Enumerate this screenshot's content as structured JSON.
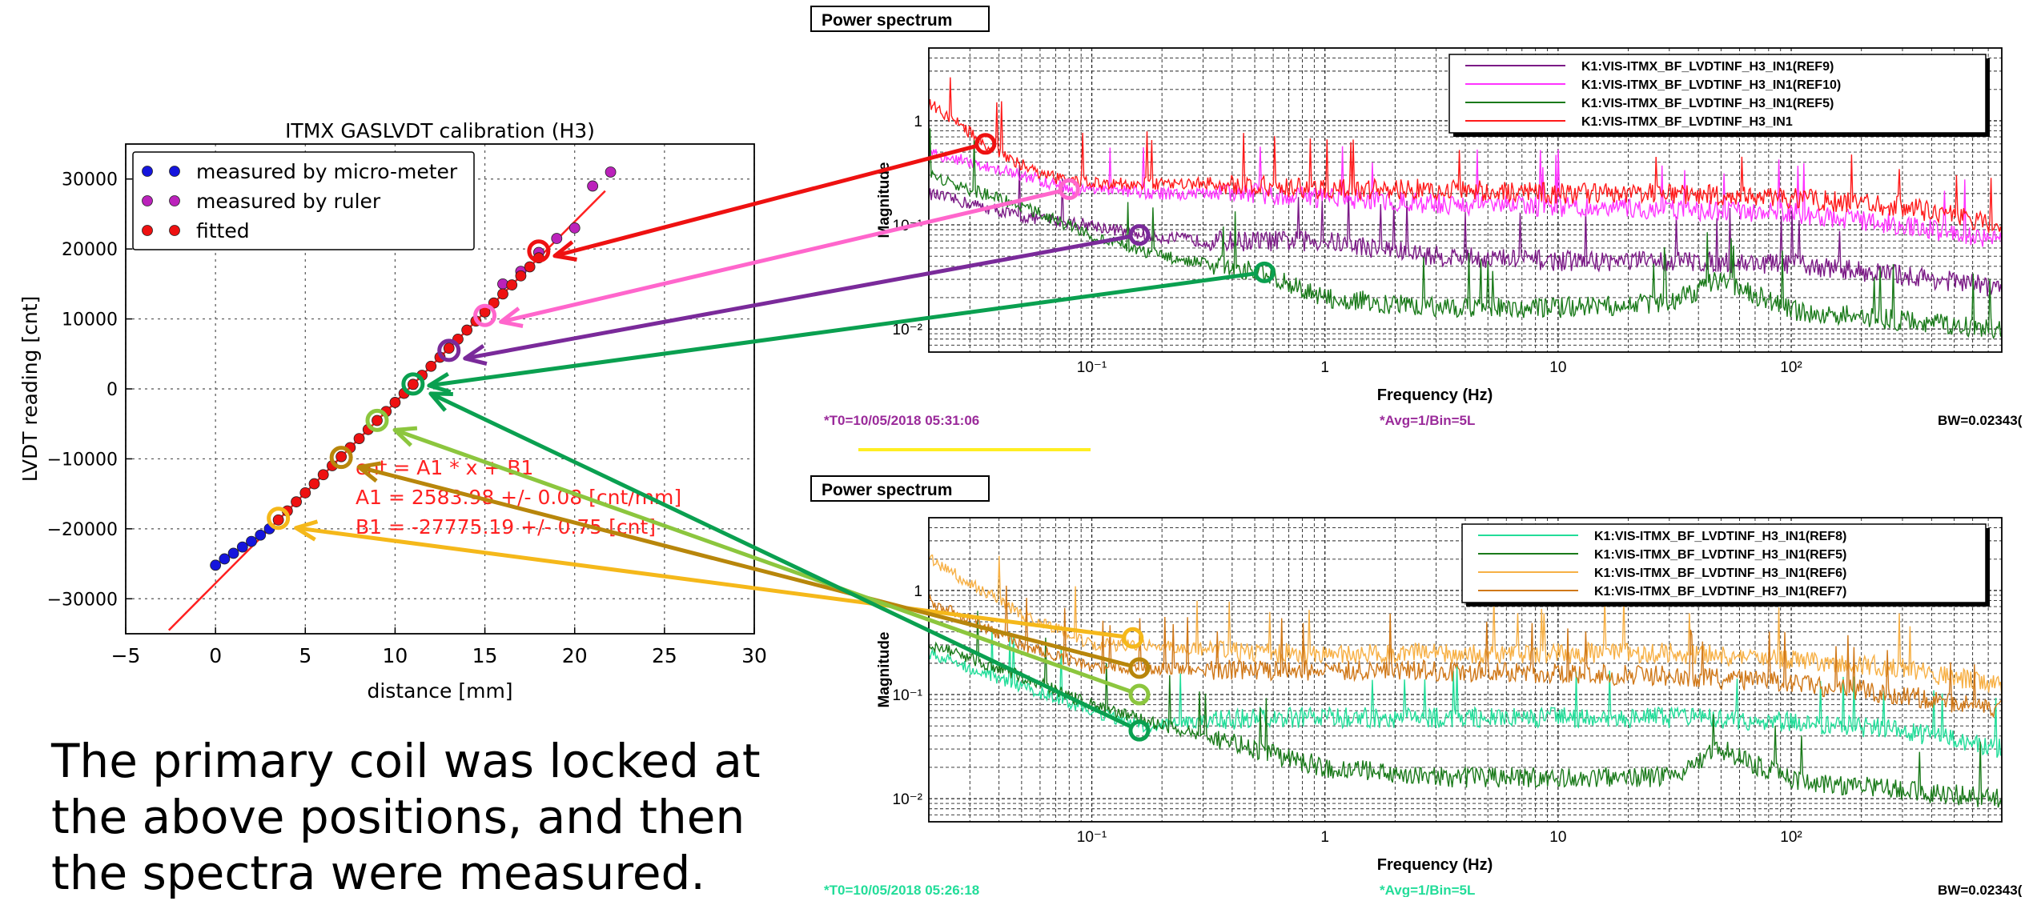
{
  "calibration": {
    "title": "ITMX GASLVDT calibration (H3)",
    "xlabel": "distance [mm]",
    "ylabel": "LVDT reading [cnt]",
    "legend": [
      "measured by micro-meter",
      "measured by ruler",
      "fitted"
    ],
    "fit_text": [
      "cnt = A1 * x + B1",
      "A1 = 2583.98 +/- 0.08 [cnt/mm]",
      "B1 = -27775.19 +/- 0.75 [cnt]"
    ],
    "x_ticks": [
      "−5",
      "0",
      "5",
      "10",
      "15",
      "20",
      "25",
      "30"
    ],
    "y_ticks": [
      "30000",
      "20000",
      "10000",
      "0",
      "−10000",
      "−20000",
      "−30000"
    ]
  },
  "spectrum_top": {
    "tab": "Power spectrum",
    "ylabel": "Magnitude",
    "xlabel": "Frequency (Hz)",
    "y_ticks": [
      "1",
      "10⁻¹",
      "10⁻²"
    ],
    "x_ticks": [
      "10⁻¹",
      "1",
      "10",
      "10²"
    ],
    "legend": [
      "K1:VIS-ITMX_BF_LVDTINF_H3_IN1(REF9)",
      "K1:VIS-ITMX_BF_LVDTINF_H3_IN1(REF10)",
      "K1:VIS-ITMX_BF_LVDTINF_H3_IN1(REF5)",
      "K1:VIS-ITMX_BF_LVDTINF_H3_IN1"
    ],
    "t0": "*T0=10/05/2018 05:31:06",
    "avg": "*Avg=1/Bin=5L",
    "bw": "BW=0.02343("
  },
  "spectrum_bottom": {
    "tab": "Power spectrum",
    "ylabel": "Magnitude",
    "xlabel": "Frequency (Hz)",
    "y_ticks": [
      "1",
      "10⁻¹",
      "10⁻²"
    ],
    "x_ticks": [
      "10⁻¹",
      "1",
      "10",
      "10²"
    ],
    "legend": [
      "K1:VIS-ITMX_BF_LVDTINF_H3_IN1(REF8)",
      "K1:VIS-ITMX_BF_LVDTINF_H3_IN1(REF5)",
      "K1:VIS-ITMX_BF_LVDTINF_H3_IN1(REF6)",
      "K1:VIS-ITMX_BF_LVDTINF_H3_IN1(REF7)"
    ],
    "t0": "*T0=10/05/2018 05:26:18",
    "avg": "*Avg=1/Bin=5L",
    "bw": "BW=0.02343("
  },
  "caption": [
    "The primary coil was locked at",
    "the above positions, and then",
    "the spectra were measured."
  ],
  "colors": {
    "red": "#ee1111",
    "pink": "#ee66cc",
    "purple": "#7a2a9a",
    "green": "#0aa050",
    "lightgreen": "#8cc63e",
    "olive": "#b8860b",
    "orange": "#f5b81a",
    "magenta": "#ff33ff",
    "darkpurple": "#7b1a86",
    "darkgreen": "#1a7a1a",
    "mint": "#22dd99",
    "lightorange": "#f5b04a",
    "brown": "#d07818",
    "blue": "#1515dd",
    "violet": "#bb22bb"
  },
  "chart_data": [
    {
      "type": "scatter",
      "title": "ITMX GASLVDT calibration (H3)",
      "xlabel": "distance [mm]",
      "ylabel": "LVDT reading [cnt]",
      "xlim": [
        -5,
        30
      ],
      "ylim": [
        -35000,
        35000
      ],
      "grid": true,
      "legend_position": "top-left",
      "series": [
        {
          "name": "measured by micro-meter",
          "x": [
            0,
            0.5,
            1,
            1.5,
            2,
            2.5,
            3
          ],
          "y": [
            -25200,
            -24300,
            -23500,
            -22600,
            -21800,
            -20900,
            -20000
          ]
        },
        {
          "name": "measured by ruler",
          "x": [
            16,
            17,
            18,
            19,
            20,
            21,
            22
          ],
          "y": [
            15000,
            16800,
            19500,
            21500,
            23000,
            29000,
            31000
          ]
        },
        {
          "name": "fitted",
          "x": [
            3.5,
            4,
            4.5,
            5,
            5.5,
            6,
            6.5,
            7,
            7.5,
            8,
            8.5,
            9,
            9.5,
            10,
            10.5,
            11,
            11.5,
            12,
            12.5,
            13,
            13.5,
            14,
            14.5,
            15,
            15.5,
            16,
            16.5,
            17,
            17.5,
            18
          ],
          "y": [
            -18731,
            -17439,
            -16147,
            -14855,
            -13563,
            -12271,
            -10979,
            -9687,
            -8395,
            -7103,
            -5811,
            -4519,
            -3227,
            -1935,
            -643,
            649,
            1941,
            3233,
            4525,
            5817,
            7109,
            8401,
            9693,
            10985,
            12277,
            13569,
            14861,
            16153,
            17445,
            18736
          ]
        }
      ],
      "fit_line": {
        "slope": 2583.98,
        "intercept": -27775.19
      },
      "highlighted_points": [
        {
          "x": 18,
          "y": 19700,
          "color": "red"
        },
        {
          "x": 15,
          "y": 10500,
          "color": "pink"
        },
        {
          "x": 13,
          "y": 5500,
          "color": "purple"
        },
        {
          "x": 11,
          "y": 700,
          "color": "green"
        },
        {
          "x": 9,
          "y": -4500,
          "color": "lightgreen"
        },
        {
          "x": 7,
          "y": -9800,
          "color": "olive"
        },
        {
          "x": 3.5,
          "y": -18500,
          "color": "orange"
        }
      ]
    },
    {
      "type": "line",
      "title": "Power spectrum",
      "xlabel": "Frequency (Hz)",
      "ylabel": "Magnitude",
      "x_scale": "log",
      "y_scale": "log",
      "xlim": [
        0.02,
        800
      ],
      "ylim": [
        0.006,
        5
      ],
      "series": [
        {
          "name": "K1:VIS-ITMX_BF_LVDTINF_H3_IN1(REF9)",
          "color": "darkpurple",
          "x": [
            0.02,
            0.05,
            0.1,
            0.16,
            0.3,
            1,
            3,
            10,
            30,
            100,
            300,
            800
          ],
          "y": [
            0.2,
            0.12,
            0.1,
            0.08,
            0.07,
            0.07,
            0.05,
            0.045,
            0.045,
            0.042,
            0.033,
            0.025
          ]
        },
        {
          "name": "K1:VIS-ITMX_BF_LVDTINF_H3_IN1(REF10)",
          "color": "magenta",
          "x": [
            0.02,
            0.05,
            0.08,
            0.2,
            0.5,
            1,
            3,
            10,
            30,
            100,
            300,
            800
          ],
          "y": [
            0.5,
            0.3,
            0.22,
            0.2,
            0.2,
            0.18,
            0.16,
            0.15,
            0.14,
            0.13,
            0.1,
            0.07
          ]
        },
        {
          "name": "K1:VIS-ITMX_BF_LVDTINF_H3_IN1(REF5)",
          "color": "darkgreen",
          "x": [
            0.02,
            0.05,
            0.1,
            0.2,
            0.55,
            1,
            3,
            10,
            30,
            50,
            100,
            300,
            800
          ],
          "y": [
            0.3,
            0.15,
            0.08,
            0.05,
            0.035,
            0.02,
            0.016,
            0.016,
            0.018,
            0.03,
            0.015,
            0.012,
            0.01
          ]
        },
        {
          "name": "K1:VIS-ITMX_BF_LVDTINF_H3_IN1",
          "color": "red",
          "x": [
            0.02,
            0.035,
            0.06,
            0.1,
            0.3,
            1,
            3,
            10,
            30,
            100,
            300,
            800
          ],
          "y": [
            1.5,
            0.6,
            0.3,
            0.25,
            0.25,
            0.22,
            0.22,
            0.2,
            0.2,
            0.18,
            0.15,
            0.1
          ]
        }
      ],
      "highlighted_points": [
        {
          "x": 0.035,
          "y": 0.6,
          "color": "red"
        },
        {
          "x": 0.08,
          "y": 0.22,
          "color": "pink"
        },
        {
          "x": 0.16,
          "y": 0.08,
          "color": "purple"
        },
        {
          "x": 0.55,
          "y": 0.035,
          "color": "green"
        }
      ]
    },
    {
      "type": "line",
      "title": "Power spectrum",
      "xlabel": "Frequency (Hz)",
      "ylabel": "Magnitude",
      "x_scale": "log",
      "y_scale": "log",
      "xlim": [
        0.02,
        800
      ],
      "ylim": [
        0.006,
        5
      ],
      "series": [
        {
          "name": "K1:VIS-ITMX_BF_LVDTINF_H3_IN1(REF8)",
          "color": "mint",
          "x": [
            0.02,
            0.05,
            0.1,
            0.16,
            0.5,
            1,
            3,
            10,
            30,
            100,
            300,
            800
          ],
          "y": [
            0.25,
            0.12,
            0.07,
            0.05,
            0.06,
            0.06,
            0.06,
            0.06,
            0.06,
            0.055,
            0.045,
            0.03
          ]
        },
        {
          "name": "K1:VIS-ITMX_BF_LVDTINF_H3_IN1(REF5)",
          "color": "darkgreen",
          "x": [
            0.02,
            0.05,
            0.1,
            0.2,
            0.5,
            1,
            3,
            10,
            30,
            50,
            100,
            300,
            800
          ],
          "y": [
            0.3,
            0.15,
            0.08,
            0.05,
            0.03,
            0.02,
            0.016,
            0.016,
            0.016,
            0.03,
            0.015,
            0.012,
            0.01
          ]
        },
        {
          "name": "K1:VIS-ITMX_BF_LVDTINF_H3_IN1(REF6)",
          "color": "lightorange",
          "x": [
            0.02,
            0.05,
            0.1,
            0.16,
            0.5,
            1,
            3,
            10,
            30,
            100,
            300,
            800
          ],
          "y": [
            2,
            0.6,
            0.3,
            0.3,
            0.25,
            0.25,
            0.25,
            0.25,
            0.25,
            0.22,
            0.18,
            0.12
          ]
        },
        {
          "name": "K1:VIS-ITMX_BF_LVDTINF_H3_IN1(REF7)",
          "color": "brown",
          "x": [
            0.02,
            0.05,
            0.1,
            0.16,
            0.5,
            1,
            3,
            10,
            30,
            100,
            300,
            800
          ],
          "y": [
            0.8,
            0.3,
            0.18,
            0.18,
            0.17,
            0.17,
            0.17,
            0.16,
            0.15,
            0.13,
            0.1,
            0.07
          ]
        }
      ],
      "highlighted_points": [
        {
          "x": 0.15,
          "y": 0.35,
          "color": "orange"
        },
        {
          "x": 0.16,
          "y": 0.18,
          "color": "olive"
        },
        {
          "x": 0.16,
          "y": 0.1,
          "color": "lightgreen"
        },
        {
          "x": 0.16,
          "y": 0.045,
          "color": "green"
        }
      ]
    }
  ]
}
